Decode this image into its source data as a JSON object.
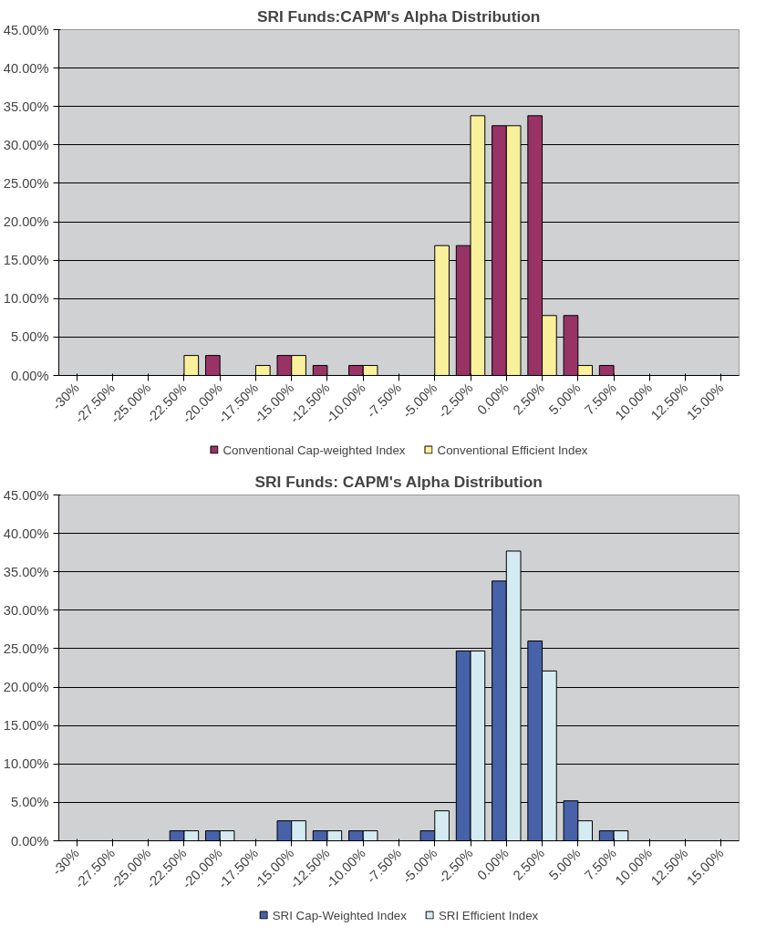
{
  "chart_data": [
    {
      "type": "bar",
      "title": "SRI Funds:CAPM's Alpha Distribution",
      "categories": [
        "-30%",
        "-27.50%",
        "-25.00%",
        "-22.50%",
        "-20.00%",
        "-17.50%",
        "-15.00%",
        "-12.50%",
        "-10.00%",
        "-7.50%",
        "-5.00%",
        "-2.50%",
        "0.00%",
        "2.50%",
        "5.00%",
        "7.50%",
        "10.00%",
        "12.50%",
        "15.00%"
      ],
      "series": [
        {
          "name": "Conventional Cap-weighted Index",
          "color": "#993366",
          "values": [
            0,
            0,
            0,
            0,
            2.6,
            0,
            2.6,
            1.3,
            1.3,
            0,
            0,
            16.9,
            32.5,
            33.8,
            7.8,
            1.3,
            0,
            0,
            0
          ]
        },
        {
          "name": "Conventional Efficient Index",
          "color": "#f8f09a",
          "values": [
            0,
            0,
            0,
            2.6,
            0,
            1.3,
            2.6,
            0,
            1.3,
            0,
            16.9,
            33.8,
            32.5,
            7.8,
            1.3,
            0,
            0,
            0,
            0
          ]
        }
      ],
      "ylim": [
        0,
        45
      ],
      "yticks": [
        {
          "value": 0,
          "label": "0.00%"
        },
        {
          "value": 5,
          "label": "5.00%"
        },
        {
          "value": 10,
          "label": "10.00%"
        },
        {
          "value": 15,
          "label": "15.00%"
        },
        {
          "value": 20,
          "label": "20.00%"
        },
        {
          "value": 25,
          "label": "25.00%"
        },
        {
          "value": 30,
          "label": "30.00%"
        },
        {
          "value": 35,
          "label": "35.00%"
        },
        {
          "value": 40,
          "label": "40.00%"
        },
        {
          "value": 45,
          "label": "45.00%"
        }
      ],
      "grid": "y",
      "legend": "bottom"
    },
    {
      "type": "bar",
      "title": "SRI Funds: CAPM's Alpha Distribution",
      "categories": [
        "-30%",
        "-27.50%",
        "-25.00%",
        "-22.50%",
        "-20.00%",
        "-17.50%",
        "-15.00%",
        "-12.50%",
        "-10.00%",
        "-7.50%",
        "-5.00%",
        "-2.50%",
        "0.00%",
        "2.50%",
        "5.00%",
        "7.50%",
        "10.00%",
        "12.50%",
        "15.00%"
      ],
      "series": [
        {
          "name": "SRI Cap-Weighted Index",
          "color": "#4762a8",
          "values": [
            0,
            0,
            0,
            1.3,
            1.3,
            0,
            2.6,
            1.3,
            1.3,
            0,
            1.3,
            24.7,
            33.8,
            26.0,
            5.2,
            1.3,
            0,
            0,
            0
          ]
        },
        {
          "name": "SRI Efficient Index",
          "color": "#d4ebf2",
          "values": [
            0,
            0,
            0,
            1.3,
            1.3,
            0,
            2.6,
            1.3,
            1.3,
            0,
            3.9,
            24.7,
            37.7,
            22.1,
            2.6,
            1.3,
            0,
            0,
            0
          ]
        }
      ],
      "ylim": [
        0,
        45
      ],
      "yticks": [
        {
          "value": 0,
          "label": "0.00%"
        },
        {
          "value": 5,
          "label": "5.00%"
        },
        {
          "value": 10,
          "label": "10.00%"
        },
        {
          "value": 15,
          "label": "15.00%"
        },
        {
          "value": 20,
          "label": "20.00%"
        },
        {
          "value": 25,
          "label": "25.00%"
        },
        {
          "value": 30,
          "label": "30.00%"
        },
        {
          "value": 35,
          "label": "35.00%"
        },
        {
          "value": 40,
          "label": "40.00%"
        },
        {
          "value": 45,
          "label": "45.00%"
        }
      ],
      "grid": "y",
      "legend": "bottom"
    }
  ]
}
